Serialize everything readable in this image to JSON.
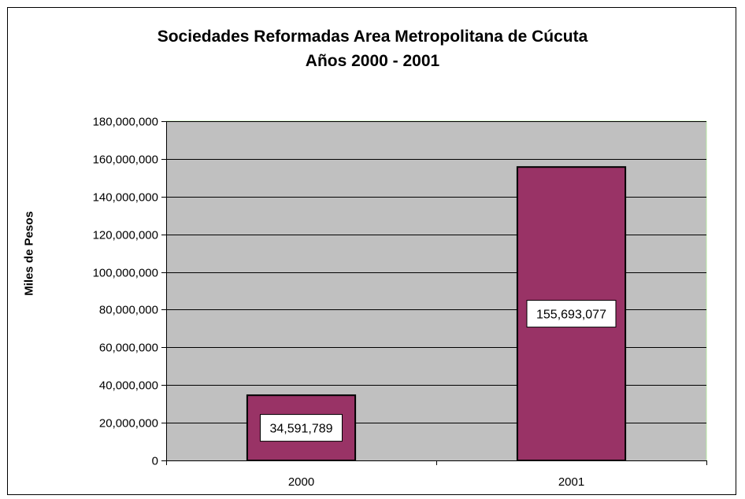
{
  "chart_data": {
    "type": "bar",
    "title": "Sociedades Reformadas Area Metropolitana de Cúcuta",
    "subtitle": "Años 2000 - 2001",
    "ylabel": "Miles de Pesos",
    "xlabel": "",
    "categories": [
      "2000",
      "2001"
    ],
    "values": [
      34591789,
      155693077
    ],
    "data_labels": [
      "34,591,789",
      "155,693,077"
    ],
    "yticks": [
      "0",
      "20,000,000",
      "40,000,000",
      "60,000,000",
      "80,000,000",
      "100,000,000",
      "120,000,000",
      "140,000,000",
      "160,000,000",
      "180,000,000"
    ],
    "ylim": [
      0,
      180000000
    ],
    "grid": true,
    "legend": "none",
    "colors": {
      "bar": "#993366",
      "plot_bg": "#c0c0c0",
      "plot_border": "#b4e6a0"
    }
  }
}
